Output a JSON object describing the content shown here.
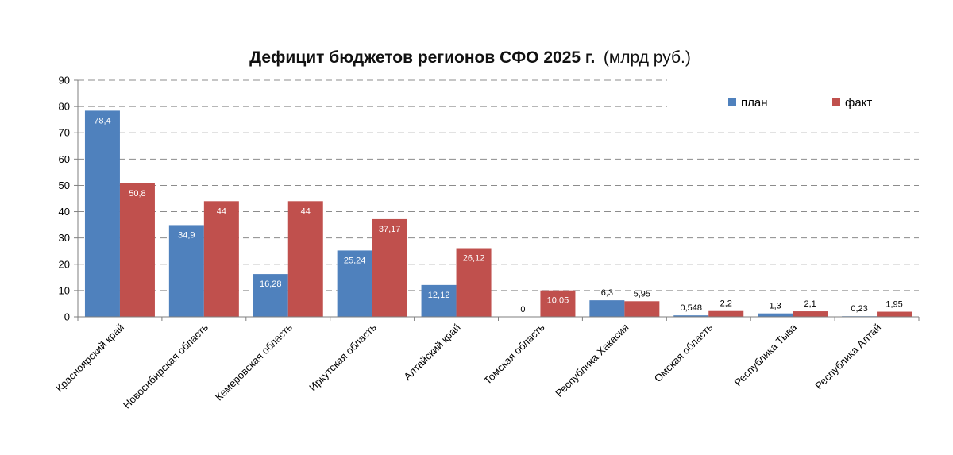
{
  "chart_data": {
    "type": "bar",
    "title": "Дефицит бюджетов регионов СФО 2025 г.",
    "title_unit": "(млрд руб.)",
    "ylim": [
      0,
      90
    ],
    "ystep": 10,
    "grid": true,
    "legend_position": "top-right",
    "categories": [
      "Красноярский край",
      "Новосибирская область",
      "Кемеровская область",
      "Иркутская область",
      "Алтайский край",
      "Томская область",
      "Республика Хакасия",
      "Омская область",
      "Республика Тыва",
      "Республика Алтай"
    ],
    "series": [
      {
        "name": "план",
        "color": "#4F81BD",
        "values": [
          78.4,
          34.9,
          16.28,
          25.24,
          12.12,
          0,
          6.3,
          0.548,
          1.3,
          0.23
        ],
        "labels": [
          "78,4",
          "34,9",
          "16,28",
          "25,24",
          "12,12",
          "0",
          "6,3",
          "0,548",
          "1,3",
          "0,23"
        ]
      },
      {
        "name": "факт",
        "color": "#C0504D",
        "values": [
          50.8,
          44,
          44,
          37.17,
          26.12,
          10.05,
          5.95,
          2.2,
          2.1,
          1.95
        ],
        "labels": [
          "50,8",
          "44",
          "44",
          "37,17",
          "26,12",
          "10,05",
          "5,95",
          "2,2",
          "2,1",
          "1,95"
        ]
      }
    ]
  }
}
